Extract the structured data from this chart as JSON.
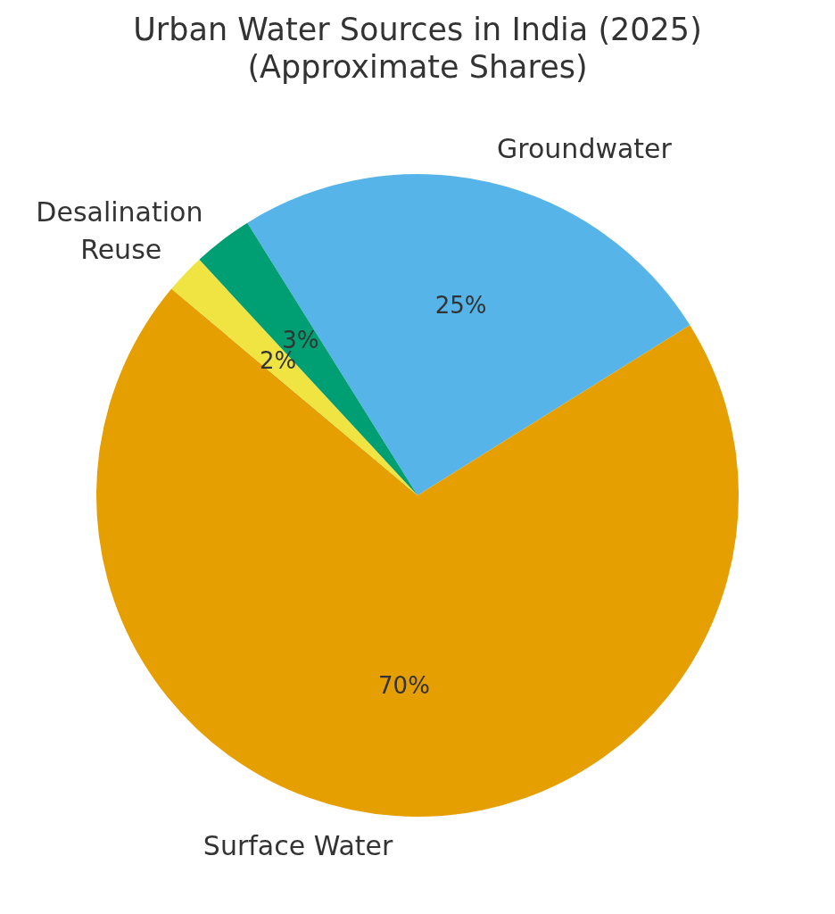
{
  "chart_data": {
    "type": "pie",
    "title": "Urban Water Sources in India (2025)\n(Approximate Shares)",
    "categories": [
      "Groundwater",
      "Surface Water",
      "Reuse",
      "Desalination"
    ],
    "values": [
      25,
      70,
      2,
      3
    ],
    "colors": [
      "#56b4e9",
      "#e69f00",
      "#f0e442",
      "#009e73"
    ],
    "value_labels": [
      "25%",
      "70%",
      "2%",
      "3%"
    ],
    "legend": false
  }
}
